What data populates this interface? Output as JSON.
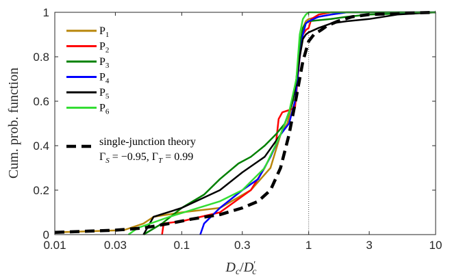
{
  "chart_data": {
    "type": "line",
    "xscale": "log",
    "xlim": [
      0.01,
      10
    ],
    "ylim": [
      0,
      1
    ],
    "xlabel_tokens": [
      "D",
      "c",
      "/",
      "D",
      "′",
      "c"
    ],
    "ylabel": "Cum. prob. function",
    "xticks": [
      0.01,
      0.03,
      0.1,
      0.3,
      1,
      3,
      10
    ],
    "xtick_labels": [
      "0.01",
      "0.03",
      "0.1",
      "0.3",
      "1",
      "3",
      "10"
    ],
    "yticks": [
      0,
      0.2,
      0.4,
      0.6,
      0.8,
      1
    ],
    "ytick_labels": [
      "0",
      "0.2",
      "0.4",
      "0.6",
      "0.8",
      "1"
    ],
    "reference_line_x": 1,
    "legend_placement": "top-left",
    "series": [
      {
        "name_main": "P",
        "name_sub": "1",
        "color": "#b8860b",
        "x": [
          0.01,
          0.035,
          0.05,
          0.06,
          0.1,
          0.2,
          0.35,
          0.5,
          0.6,
          0.68,
          0.75,
          0.8,
          0.85,
          0.9,
          0.95,
          1.0,
          1.2,
          1.5,
          2.0,
          5.0,
          10
        ],
        "y": [
          0.01,
          0.02,
          0.05,
          0.08,
          0.1,
          0.12,
          0.2,
          0.3,
          0.45,
          0.5,
          0.6,
          0.7,
          0.85,
          0.93,
          0.96,
          0.97,
          0.98,
          0.99,
          1.0,
          1.0,
          1.0
        ]
      },
      {
        "name_main": "P",
        "name_sub": "2",
        "color": "#ff0000",
        "x": [
          0.07,
          0.072,
          0.1,
          0.2,
          0.35,
          0.45,
          0.55,
          0.58,
          0.62,
          0.7,
          0.78,
          0.85,
          0.9,
          0.95,
          1.0,
          1.05,
          1.2,
          1.5,
          2.0,
          10
        ],
        "y": [
          0.0,
          0.05,
          0.06,
          0.1,
          0.2,
          0.3,
          0.4,
          0.52,
          0.55,
          0.56,
          0.57,
          0.8,
          0.9,
          0.92,
          0.93,
          0.97,
          0.99,
          1.0,
          1.0,
          1.0
        ]
      },
      {
        "name_main": "P",
        "name_sub": "3",
        "color": "#008000",
        "x": [
          0.05,
          0.07,
          0.1,
          0.15,
          0.2,
          0.28,
          0.35,
          0.45,
          0.55,
          0.65,
          0.75,
          0.8,
          0.85,
          0.9,
          0.95,
          1.0,
          1.5,
          2.0,
          3.0,
          10
        ],
        "y": [
          0.0,
          0.05,
          0.12,
          0.18,
          0.25,
          0.32,
          0.35,
          0.4,
          0.45,
          0.5,
          0.6,
          0.7,
          0.85,
          0.93,
          0.95,
          0.96,
          0.97,
          0.98,
          0.99,
          1.0
        ]
      },
      {
        "name_main": "P",
        "name_sub": "4",
        "color": "#0000ff",
        "x": [
          0.14,
          0.15,
          0.2,
          0.3,
          0.4,
          0.5,
          0.6,
          0.7,
          0.78,
          0.85,
          0.9,
          0.95,
          1.0,
          1.2,
          1.5,
          2.0,
          10
        ],
        "y": [
          0.0,
          0.05,
          0.12,
          0.2,
          0.25,
          0.35,
          0.45,
          0.5,
          0.6,
          0.8,
          0.9,
          0.95,
          0.96,
          0.98,
          0.99,
          1.0,
          1.0
        ]
      },
      {
        "name_main": "P",
        "name_sub": "5",
        "color": "#000000",
        "x": [
          0.05,
          0.06,
          0.1,
          0.2,
          0.3,
          0.45,
          0.6,
          0.7,
          0.78,
          0.85,
          0.9,
          0.95,
          1.0,
          1.2,
          1.5,
          2.0,
          3.0,
          5.0,
          10
        ],
        "y": [
          0.0,
          0.08,
          0.12,
          0.2,
          0.28,
          0.35,
          0.45,
          0.55,
          0.65,
          0.8,
          0.88,
          0.9,
          0.91,
          0.93,
          0.95,
          0.96,
          0.97,
          0.99,
          1.0
        ]
      },
      {
        "name_main": "P",
        "name_sub": "6",
        "color": "#33dd33",
        "x": [
          0.038,
          0.045,
          0.08,
          0.2,
          0.3,
          0.45,
          0.6,
          0.7,
          0.8,
          0.85,
          0.9,
          0.95,
          1.0,
          1.2,
          1.5,
          2.0,
          10
        ],
        "y": [
          0.0,
          0.03,
          0.08,
          0.15,
          0.2,
          0.3,
          0.45,
          0.55,
          0.7,
          0.9,
          0.97,
          0.99,
          1.0,
          1.0,
          1.0,
          1.0,
          1.0
        ]
      },
      {
        "name_main": "single-junction theory",
        "name_line2_tokens": [
          "Γ",
          "S",
          " = −0.95, ",
          "Γ",
          "T",
          " = 0.99"
        ],
        "color": "#000000",
        "dashed": true,
        "x": [
          0.01,
          0.03,
          0.05,
          0.08,
          0.12,
          0.2,
          0.3,
          0.4,
          0.5,
          0.6,
          0.7,
          0.8,
          0.9,
          1.0,
          1.1,
          1.25,
          1.4,
          1.7,
          2.2,
          3.0,
          5.0,
          10
        ],
        "y": [
          0.01,
          0.02,
          0.03,
          0.05,
          0.07,
          0.09,
          0.12,
          0.15,
          0.2,
          0.3,
          0.45,
          0.62,
          0.78,
          0.87,
          0.9,
          0.92,
          0.94,
          0.96,
          0.98,
          0.99,
          0.995,
          1.0
        ]
      }
    ]
  }
}
